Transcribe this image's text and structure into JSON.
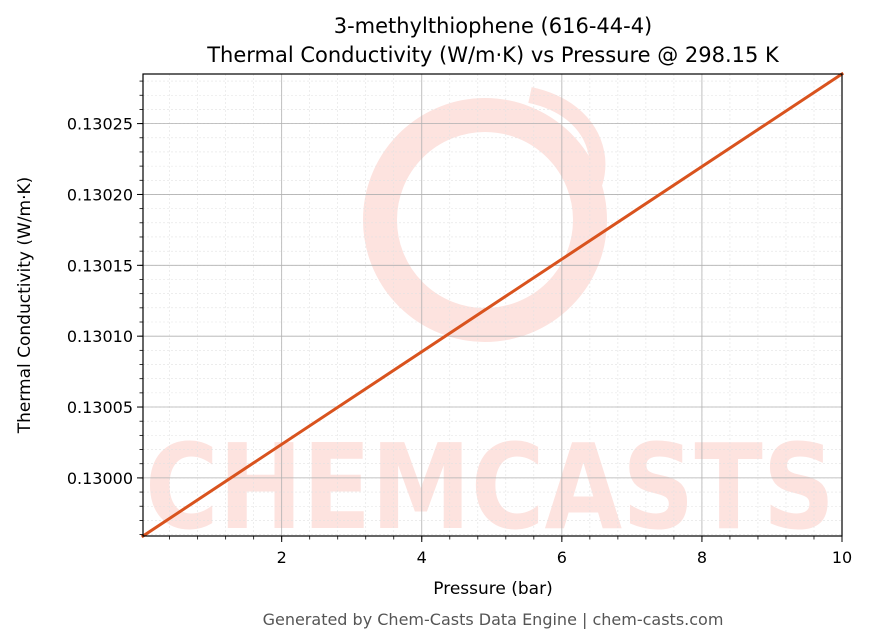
{
  "chart_data": {
    "type": "line",
    "title": "3-methylthiophene (616-44-4)",
    "subtitle": "Thermal Conductivity (W/m·K) vs Pressure @ 298.15 K",
    "xlabel": "Pressure (bar)",
    "ylabel": "Thermal Conductivity (W/m·K)",
    "xlim": [
      0.02,
      10
    ],
    "ylim": [
      0.129959,
      0.130285
    ],
    "x_ticks": [
      2,
      4,
      6,
      8,
      10
    ],
    "x_tick_labels": [
      "2",
      "4",
      "6",
      "8",
      "10"
    ],
    "y_ticks": [
      0.13,
      0.13005,
      0.1301,
      0.13015,
      0.1302,
      0.13025
    ],
    "y_tick_labels": [
      "0.13000",
      "0.13005",
      "0.13010",
      "0.13015",
      "0.13020",
      "0.13025"
    ],
    "grid": true,
    "series": [
      {
        "color": "#d9531e",
        "x": [
          0.02,
          10
        ],
        "y": [
          0.129959,
          0.130285
        ]
      }
    ]
  },
  "watermark": {
    "text": "CHEMCASTS",
    "color": "#fde3df"
  },
  "footer": {
    "text": "Generated by Chem-Casts Data Engine | chem-casts.com"
  }
}
